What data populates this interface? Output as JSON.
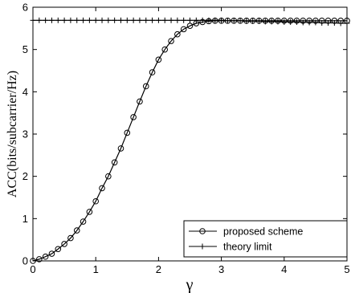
{
  "chart_data": {
    "type": "line",
    "xlabel": "γ",
    "ylabel": "ACC(bits/subcarrier/Hz)",
    "xlim": [
      0,
      5
    ],
    "ylim": [
      0,
      6
    ],
    "xticks": [
      0,
      1,
      2,
      3,
      4,
      5
    ],
    "yticks": [
      0,
      1,
      2,
      3,
      4,
      5,
      6
    ],
    "xtick_labels": [
      "0",
      "1",
      "2",
      "3",
      "4",
      "5"
    ],
    "ytick_labels": [
      "0",
      "1",
      "2",
      "3",
      "4",
      "5",
      "6"
    ],
    "grid": false,
    "legend_position": "bottom-right",
    "series": [
      {
        "name": "proposed scheme",
        "marker": "circle",
        "color": "#000000",
        "x": [
          0,
          0.1,
          0.2,
          0.3,
          0.4,
          0.5,
          0.6,
          0.7,
          0.8,
          0.9,
          1.0,
          1.1,
          1.2,
          1.3,
          1.4,
          1.5,
          1.6,
          1.7,
          1.8,
          1.9,
          2.0,
          2.1,
          2.2,
          2.3,
          2.4,
          2.5,
          2.6,
          2.7,
          2.8,
          2.9,
          3.0,
          3.1,
          3.2,
          3.3,
          3.4,
          3.5,
          3.6,
          3.7,
          3.8,
          3.9,
          4.0,
          4.1,
          4.2,
          4.3,
          4.4,
          4.5,
          4.6,
          4.7,
          4.8,
          4.9,
          5.0
        ],
        "y": [
          0.0,
          0.04,
          0.1,
          0.17,
          0.28,
          0.4,
          0.54,
          0.72,
          0.93,
          1.16,
          1.41,
          1.72,
          2.0,
          2.33,
          2.66,
          3.03,
          3.4,
          3.77,
          4.13,
          4.46,
          4.76,
          5.0,
          5.2,
          5.36,
          5.48,
          5.56,
          5.62,
          5.65,
          5.67,
          5.68,
          5.68,
          5.68,
          5.68,
          5.68,
          5.68,
          5.68,
          5.68,
          5.68,
          5.68,
          5.68,
          5.68,
          5.68,
          5.68,
          5.68,
          5.68,
          5.68,
          5.68,
          5.68,
          5.68,
          5.68,
          5.68
        ]
      },
      {
        "name": "theory limit",
        "marker": "plus",
        "color": "#000000",
        "x": [
          0,
          0.1,
          0.2,
          0.3,
          0.4,
          0.5,
          0.6,
          0.7,
          0.8,
          0.9,
          1.0,
          1.1,
          1.2,
          1.3,
          1.4,
          1.5,
          1.6,
          1.7,
          1.8,
          1.9,
          2.0,
          2.1,
          2.2,
          2.3,
          2.4,
          2.5,
          2.6,
          2.7,
          2.8,
          2.9,
          3.0,
          3.1,
          3.2,
          3.3,
          3.4,
          3.5,
          3.6,
          3.7,
          3.8,
          3.9,
          4.0,
          4.1,
          4.2,
          4.3,
          4.4,
          4.5,
          4.6,
          4.7,
          4.8,
          4.9,
          5.0
        ],
        "y": [
          5.69,
          5.69,
          5.69,
          5.69,
          5.69,
          5.69,
          5.69,
          5.69,
          5.69,
          5.69,
          5.69,
          5.69,
          5.69,
          5.69,
          5.69,
          5.69,
          5.69,
          5.69,
          5.69,
          5.69,
          5.69,
          5.69,
          5.69,
          5.69,
          5.69,
          5.69,
          5.69,
          5.69,
          5.69,
          5.69,
          5.69,
          5.68,
          5.68,
          5.68,
          5.67,
          5.67,
          5.67,
          5.66,
          5.66,
          5.66,
          5.65,
          5.65,
          5.65,
          5.64,
          5.64,
          5.64,
          5.63,
          5.63,
          5.63,
          5.62,
          5.62
        ]
      }
    ]
  }
}
